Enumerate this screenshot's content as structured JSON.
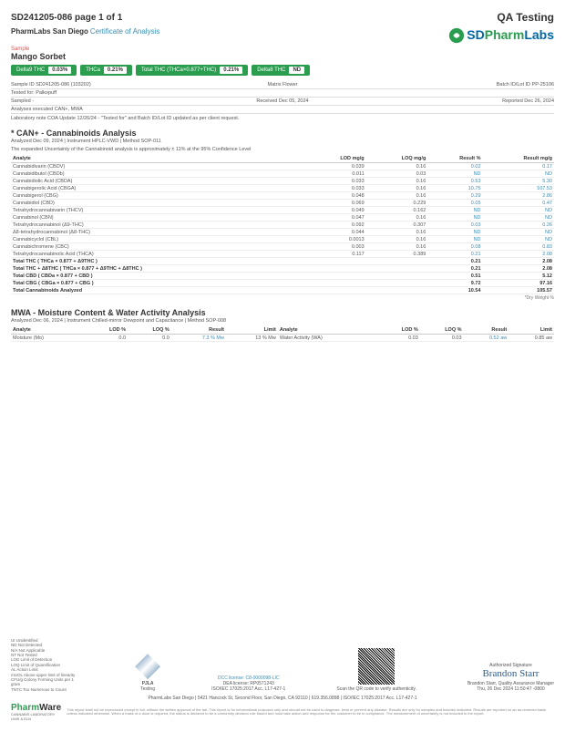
{
  "header": {
    "page_id": "SD241205-086 page 1 of 1",
    "qa": "QA Testing"
  },
  "lab": {
    "name": "PharmLabs San Diego",
    "cert": "Certificate of Analysis",
    "logo_sd": "SD",
    "logo_pharm": "Pharm",
    "logo_labs": "Labs"
  },
  "sample": {
    "label": "Sample",
    "name": "Mango Sorbet"
  },
  "pills": [
    {
      "label": "Delta9 THC",
      "val": "0.03%"
    },
    {
      "label": "THCa",
      "val": "0.21%"
    },
    {
      "label": "Total THC (THCa×0.877+THC)",
      "val": "0.21%"
    },
    {
      "label": "Delta8 THC",
      "val": "ND"
    }
  ],
  "meta": {
    "sample_id": "Sample ID SD241205-086 (103202)",
    "matrix": "Matrix Flower",
    "batch": "Batch ID/Lot ID PP-25106",
    "tested_for": "Tested for: Palkopuff",
    "sampled": "Sampled -",
    "received": "Received Dec 05, 2024",
    "reported": "Reported Dec 26, 2024",
    "analyses": "Analyses executed CAN+, MWA",
    "lab_note": "Laboratory note COA Update 12/26/24 - \"Tested for\" and Batch ID/Lot ID updated as per client request."
  },
  "can": {
    "title": "* CAN+ - Cannabinoids Analysis",
    "sub1": "Analyzed Dec 09, 2024 | Instrument HPLC-VWD | Method SOP-011",
    "sub2": "The expanded Uncertainty of the Cannabinoid analysis is approximately ± 11% at the 95% Confidence Level",
    "cols": [
      "Analyte",
      "LOD mg/g",
      "LOQ mg/g",
      "Result %",
      "Result mg/g"
    ],
    "rows": [
      [
        "Cannabidivarin (CBDV)",
        "0.039",
        "0.16",
        "0.02",
        "0.17"
      ],
      [
        "Cannabidibutol (CBDb)",
        "0.011",
        "0.03",
        "ND",
        "ND"
      ],
      [
        "Cannabidiolic Acid (CBDA)",
        "0.033",
        "0.16",
        "0.53",
        "5.30"
      ],
      [
        "Cannabigerolic Acid (CBGA)",
        "0.033",
        "0.16",
        "10.75",
        "107.53"
      ],
      [
        "Cannabigerol (CBG)",
        "0.048",
        "0.16",
        "0.29",
        "2.86"
      ],
      [
        "Cannabidiol (CBD)",
        "0.069",
        "0.229",
        "0.05",
        "0.47"
      ],
      [
        "Tetrahydrocannabivarin (THCV)",
        "0.049",
        "0.162",
        "ND",
        "ND"
      ],
      [
        "Cannabinol (CBN)",
        "0.047",
        "0.16",
        "ND",
        "ND"
      ],
      [
        "Tetrahydrocannabinol (Δ9-THC)",
        "0.092",
        "0.307",
        "0.03",
        "0.26"
      ],
      [
        "Δ8-tetrahydrocannabinol (Δ8-THC)",
        "0.044",
        "0.16",
        "ND",
        "ND"
      ],
      [
        "Cannabicyclol (CBL)",
        "0.0013",
        "0.16",
        "ND",
        "ND"
      ],
      [
        "Cannabichromene (CBC)",
        "0.003",
        "0.16",
        "0.08",
        "0.83"
      ],
      [
        "Tetrahydrocannabinolic Acid (THCA)",
        "0.117",
        "0.389",
        "0.21",
        "2.08"
      ]
    ],
    "totals": [
      [
        "Total THC ( THCa × 0.877 + Δ9THC )",
        "",
        "",
        "0.21",
        "2.08"
      ],
      [
        "Total THC + Δ8THC ( THCa × 0.877 + Δ9THC + Δ8THC )",
        "",
        "",
        "0.21",
        "2.08"
      ],
      [
        "Total CBD ( CBDa × 0.877 + CBD )",
        "",
        "",
        "0.51",
        "5.12"
      ],
      [
        "Total CBG ( CBGa × 0.877 + CBG )",
        "",
        "",
        "9.72",
        "97.16"
      ],
      [
        "Total Cannabinoids Analyzed",
        "",
        "",
        "10.54",
        "105.57"
      ]
    ],
    "note": "*Dry Weight %"
  },
  "mwa": {
    "title": "MWA - Moisture Content & Water Activity Analysis",
    "sub": "Analyzed Dec 06, 2024 | Instrument Chilled-mirror Dewpoint and Capacitance | Method SOP-008",
    "cols": [
      "Analyte",
      "LOD %",
      "LOQ %",
      "Result",
      "Limit",
      "Analyte",
      "LOD %",
      "LOQ %",
      "Result",
      "Limit"
    ],
    "row": [
      "Moisture (Mo)",
      "0.0",
      "0.0",
      "7.3 % Mw",
      "13 % Mw",
      "Water Activity (WA)",
      "0.03",
      "0.03",
      "0.52 aw",
      "0.85 aw"
    ]
  },
  "footer": {
    "legend": "UI Unidentified\nND Not Detected\nN/A Not Applicable\nNT Not Tested\nLOD Limit of Detection\nLOQ Limit of Quantification\nAL Action Limit\nmUOL Above upper limit of linearity\nCFU/g Colony Forming Units per 1 gram\nTNTC Too Numerous to Count",
    "dcc": "DCC license: C8-0000098-LIC",
    "dea": "DEA license: RP0571243",
    "iso": "ISO/IEC 17025:2017 Acc. L17-427-1",
    "qr_note": "Scan the QR code to verify authenticity.",
    "sig_title": "Authorized Signature",
    "sig": "Brandon Starr",
    "sig_name": "Brandon Starr, Quality Assurance Manager",
    "sig_date": "Thu, 26 Dec 2024 11:50:47 -0800",
    "addr": "PharmLabs San Diego | 5421 Hancock St, Second Floor, San Diego, CA 92110 | 619.356.0898 | ISO/IEC 17025:2017 Acc. L17-427-1",
    "disclaimer": "This report shall not be reproduced except in full, without the written approval of the lab. This report is for informational purposes only and should not be used to diagnose, treat or prevent any disease. Results are only for samples and batches indicated. Results are reported on an as-received basis unless indicated otherwise. When a mass of a dose is required, the status is declared to be a conformity decision rule based and must take action and response for the customer to be in compliance. The measurement of uncertainty is not included in the report.",
    "pharmware_p": "Pharm",
    "pharmware_w": "Ware",
    "pharmware_sub": "CANNABIS LABORATORY LIMS & ELN"
  }
}
